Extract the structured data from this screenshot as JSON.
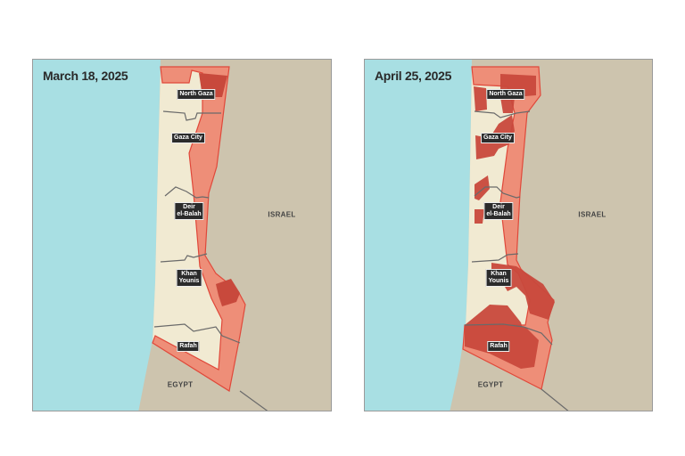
{
  "panels": [
    {
      "title": "March 18, 2025",
      "labels": {
        "north_gaza": "North Gaza",
        "gaza_city": "Gaza City",
        "deir": "Deir\nel-Balah",
        "khan": "Khan\nYounis",
        "rafah": "Rafah",
        "israel": "ISRAEL",
        "egypt": "EGYPT"
      }
    },
    {
      "title": "April 25, 2025",
      "labels": {
        "north_gaza": "North Gaza",
        "gaza_city": "Gaza City",
        "deir": "Deir\nel-Balah",
        "khan": "Khan\nYounis",
        "rafah": "Rafah",
        "israel": "ISRAEL",
        "egypt": "EGYPT"
      }
    }
  ],
  "colors": {
    "sea": "#a8dfe3",
    "land": "#cdc4ae",
    "strip": "#f1ead2",
    "zone_light": "#ee8e78",
    "zone_dark": "#c8493c",
    "zone_border": "#e0483a",
    "boundary": "#6a6a6a"
  }
}
